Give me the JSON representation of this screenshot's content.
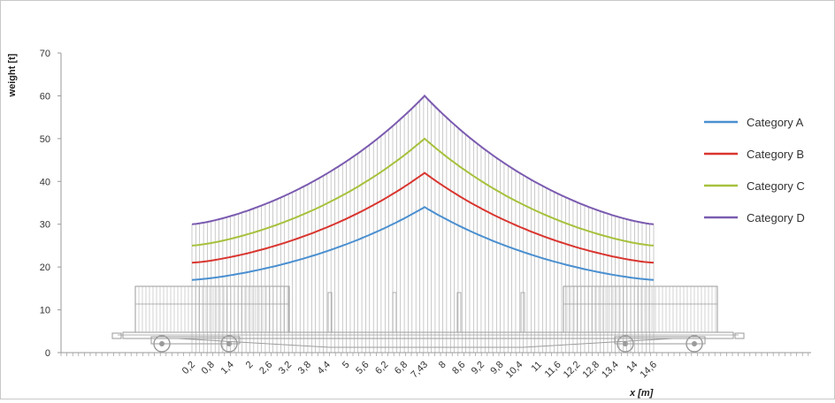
{
  "chart_data": {
    "type": "line",
    "ylabel": "weight [t]",
    "xlabel": "x [m]",
    "ylim": [
      0,
      70
    ],
    "y_ticks": [
      "0",
      "10",
      "20",
      "30",
      "40",
      "50",
      "60",
      "70"
    ],
    "x_tick_labels": [
      "0,2",
      "0,8",
      "1,4",
      "2",
      "2,6",
      "3,2",
      "3,8",
      "4,4",
      "5",
      "5,6",
      "6,2",
      "6,8",
      "7,43",
      "8",
      "8,6",
      "9,2",
      "9,8",
      "10,4",
      "11",
      "11,6",
      "12,2",
      "12,8",
      "13,4",
      "14",
      "14,6"
    ],
    "x_domain": [
      0.2,
      14.6
    ],
    "peak_x": 7.43,
    "legend_position": "right",
    "grid": "vertical lines at every data point",
    "series": [
      {
        "name": "Category A",
        "color": "#4a8fd0",
        "end_value": 17,
        "peak_value": 34
      },
      {
        "name": "Category B",
        "color": "#d9352f",
        "end_value": 21,
        "peak_value": 42
      },
      {
        "name": "Category C",
        "color": "#a6c13c",
        "end_value": 25,
        "peak_value": 50
      },
      {
        "name": "Category D",
        "color": "#7b5bb0",
        "end_value": 30,
        "peak_value": 60
      }
    ]
  }
}
